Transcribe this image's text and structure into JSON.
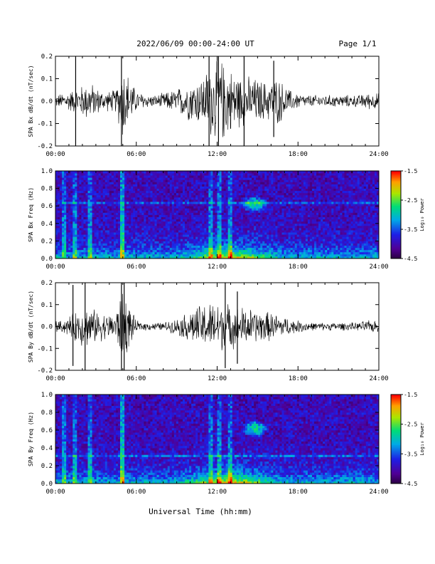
{
  "header": {
    "date_range": "2022/06/09  00:00-24:00 UT",
    "page": "Page 1/1"
  },
  "footer": {
    "xlabel": "Universal Time (hh:mm)"
  },
  "chart_data": [
    {
      "type": "line",
      "title": "",
      "ylabel": "SPA Bx dB/dt (nT/sec)",
      "ylim": [
        -0.2,
        0.2
      ],
      "yticks": [
        "-0.2",
        "-0.1",
        "0.0",
        "0.1",
        "0.2"
      ],
      "xlim": [
        0,
        24
      ],
      "xticks": [
        "00:00",
        "06:00",
        "12:00",
        "18:00",
        "24:00"
      ],
      "series": [
        {
          "x": [
            0,
            0.5,
            1,
            1.5,
            2,
            2.5,
            3,
            3.5,
            4,
            4.5,
            5,
            5.5,
            6,
            6.5,
            7,
            7.5,
            8,
            8.5,
            9,
            9.5,
            10,
            10.5,
            11,
            11.5,
            12,
            12.5,
            13,
            13.5,
            14,
            14.5,
            15,
            15.5,
            16,
            16.5,
            17,
            17.5,
            18,
            18.5,
            19,
            19.5,
            20,
            20.5,
            21,
            21.5,
            22,
            22.5,
            23,
            23.5,
            24
          ],
          "envelope": [
            0.03,
            0.04,
            0.05,
            0.06,
            0.08,
            0.1,
            0.07,
            0.05,
            0.05,
            0.06,
            0.2,
            0.12,
            0.05,
            0.04,
            0.03,
            0.03,
            0.04,
            0.05,
            0.06,
            0.08,
            0.1,
            0.11,
            0.13,
            0.18,
            0.2,
            0.2,
            0.16,
            0.14,
            0.12,
            0.12,
            0.11,
            0.1,
            0.1,
            0.12,
            0.08,
            0.05,
            0.04,
            0.03,
            0.03,
            0.03,
            0.03,
            0.03,
            0.03,
            0.03,
            0.03,
            0.03,
            0.04,
            0.04,
            0.04
          ]
        }
      ],
      "spikes": [
        [
          1.5,
          0.2,
          -0.2
        ],
        [
          4.9,
          0.2,
          -0.2
        ],
        [
          11.4,
          0.2,
          -0.2
        ],
        [
          12.1,
          0.2,
          -0.2
        ],
        [
          14.0,
          0.2,
          -0.2
        ],
        [
          16.2,
          0.18,
          -0.16
        ]
      ]
    },
    {
      "type": "heatmap",
      "ylabel": "SPA Bx Freq (Hz)",
      "ylim": [
        0,
        1.0
      ],
      "yticks": [
        "0.0",
        "0.2",
        "0.4",
        "0.6",
        "0.8",
        "1.0"
      ],
      "xlim": [
        0,
        24
      ],
      "xticks": [
        "00:00",
        "06:00",
        "12:00",
        "18:00",
        "24:00"
      ],
      "colorbar": {
        "label": "Log₁₀ Power",
        "range": [
          -4.5,
          -1.5
        ],
        "ticks": [
          "-1.5",
          "-2.5",
          "-3.5",
          "-4.5"
        ]
      },
      "features": {
        "bright_columns_hours": [
          0.6,
          1.5,
          2.5,
          5.0,
          11.5,
          12.2,
          13.0
        ],
        "blob": {
          "hour": 14.8,
          "freq": 0.62
        },
        "line_freq": 0.63,
        "low_freq_active_hours": [
          9,
          17
        ]
      }
    },
    {
      "type": "line",
      "title": "",
      "ylabel": "SPA By dB/dt (nT/sec)",
      "ylim": [
        -0.2,
        0.2
      ],
      "yticks": [
        "-0.2",
        "-0.1",
        "0.0",
        "0.1",
        "0.2"
      ],
      "xlim": [
        0,
        24
      ],
      "xticks": [
        "00:00",
        "06:00",
        "12:00",
        "18:00",
        "24:00"
      ],
      "series": [
        {
          "x": [
            0,
            0.5,
            1,
            1.5,
            2,
            2.5,
            3,
            3.5,
            4,
            4.5,
            5,
            5.5,
            6,
            6.5,
            7,
            7.5,
            8,
            8.5,
            9,
            9.5,
            10,
            10.5,
            11,
            11.5,
            12,
            12.5,
            13,
            13.5,
            14,
            14.5,
            15,
            15.5,
            16,
            16.5,
            17,
            17.5,
            18,
            18.5,
            19,
            19.5,
            20,
            20.5,
            21,
            21.5,
            22,
            22.5,
            23,
            23.5,
            24
          ],
          "envelope": [
            0.03,
            0.03,
            0.05,
            0.08,
            0.1,
            0.1,
            0.08,
            0.07,
            0.06,
            0.08,
            0.2,
            0.1,
            0.03,
            0.02,
            0.02,
            0.02,
            0.02,
            0.03,
            0.04,
            0.06,
            0.08,
            0.1,
            0.12,
            0.12,
            0.13,
            0.12,
            0.11,
            0.1,
            0.1,
            0.09,
            0.08,
            0.08,
            0.07,
            0.06,
            0.05,
            0.04,
            0.03,
            0.03,
            0.02,
            0.02,
            0.02,
            0.02,
            0.02,
            0.02,
            0.02,
            0.02,
            0.03,
            0.03,
            0.03
          ]
        }
      ],
      "spikes": [
        [
          1.3,
          0.19,
          -0.18
        ],
        [
          2.2,
          0.2,
          -0.2
        ],
        [
          4.9,
          0.2,
          -0.2
        ],
        [
          5.1,
          0.2,
          -0.2
        ],
        [
          12.6,
          0.2,
          -0.19
        ],
        [
          13.5,
          0.16,
          -0.17
        ]
      ]
    },
    {
      "type": "heatmap",
      "ylabel": "SPA By Freq (Hz)",
      "ylim": [
        0,
        1.0
      ],
      "yticks": [
        "0.0",
        "0.2",
        "0.4",
        "0.6",
        "0.8",
        "1.0"
      ],
      "xlim": [
        0,
        24
      ],
      "xticks": [
        "00:00",
        "06:00",
        "12:00",
        "18:00",
        "24:00"
      ],
      "colorbar": {
        "label": "Log₁₀ Power",
        "range": [
          -4.5,
          -1.5
        ],
        "ticks": [
          "-1.5",
          "-2.5",
          "-3.5",
          "-4.5"
        ]
      },
      "features": {
        "bright_columns_hours": [
          0.6,
          1.5,
          2.5,
          5.0,
          11.5,
          12.2,
          13.0
        ],
        "blob": {
          "hour": 14.8,
          "freq": 0.62
        },
        "line_freq": 0.32,
        "low_freq_active_hours": [
          9,
          17
        ]
      }
    }
  ]
}
